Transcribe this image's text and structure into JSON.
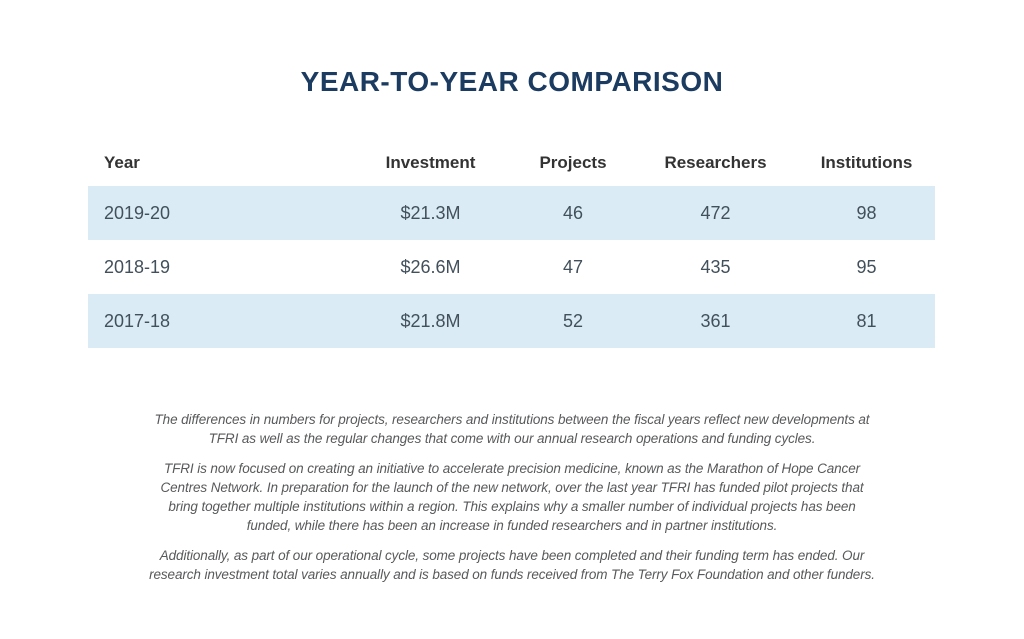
{
  "title": "YEAR-TO-YEAR COMPARISON",
  "table": {
    "headers": [
      "Year",
      "Investment",
      "Projects",
      "Researchers",
      "Institutions"
    ],
    "rows": [
      [
        "2019-20",
        "$21.3M",
        "46",
        "472",
        "98"
      ],
      [
        "2018-19",
        "$26.6M",
        "47",
        "435",
        "95"
      ],
      [
        "2017-18",
        "$21.8M",
        "52",
        "361",
        "81"
      ]
    ]
  },
  "notes": {
    "p1": [
      "The differences in numbers for projects, researchers and institutions between the fiscal years reflect new developments at",
      "TFRI as well as the regular changes that come with our annual research operations and funding cycles."
    ],
    "p2": [
      "TFRI is now focused on creating an initiative to accelerate precision medicine, known as the Marathon of Hope Cancer",
      "Centres Network. In preparation for the launch of the new network, over the last year TFRI has funded pilot projects that",
      "bring together multiple institutions within a region. This explains why a smaller number of individual projects has been",
      "funded, while there has been an increase in funded researchers and in partner institutions."
    ],
    "p3": [
      "Additionally, as part of our operational cycle, some projects have been completed and their funding term has ended. Our",
      "research investment total varies annually and is based on funds received from The Terry Fox Foundation and other funders."
    ]
  },
  "colors": {
    "title": "#1b3b60",
    "stripe": "#daebf5",
    "header_text": "#333333",
    "cell_text": "#42505b",
    "note_text": "#58595b"
  }
}
